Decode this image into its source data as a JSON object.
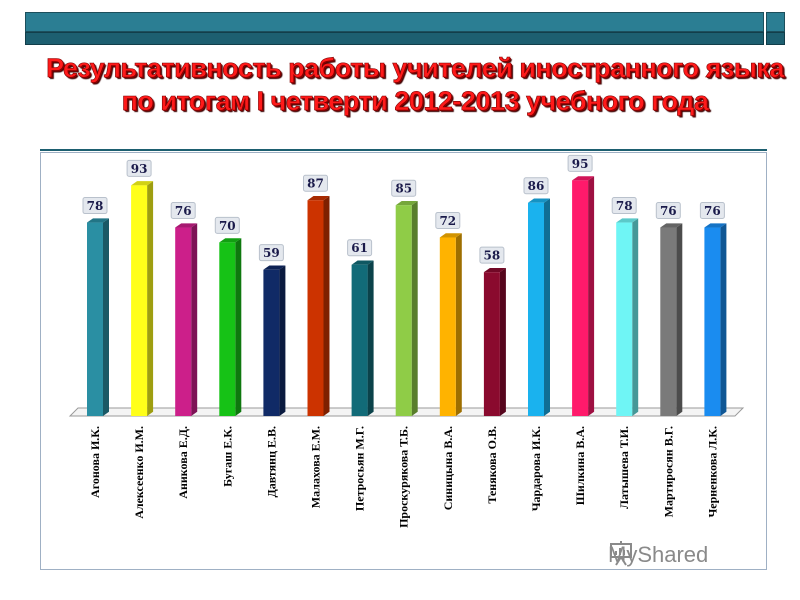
{
  "title": {
    "line1": "Результативность работы учителей иностранного языка",
    "line2": "по итогам I четверти 2012-2013 учебного года"
  },
  "watermark": {
    "text": "MyShared",
    "icon": "presentation-board-icon"
  },
  "chart_data": {
    "type": "bar",
    "title": "",
    "xlabel": "",
    "ylabel": "",
    "ylim": [
      0,
      100
    ],
    "grid": false,
    "legend": "none",
    "categories": [
      "Агонова И.К.",
      "Алексеенко И.М.",
      "Аникова Е.Д.",
      "Бугаш Е.К.",
      "Давтянц Е.В.",
      "Малахова Е.М.",
      "Петросьян М.Г.",
      "Проскурякова Т.Б.",
      "Синицына В.А.",
      "Тенякова О.В.",
      "Чардарова И.К.",
      "Шилкина В.А.",
      "Латышева Т.И.",
      "Мартиросян В.Г.",
      "Черненкова Л.К."
    ],
    "values": [
      78,
      93,
      76,
      70,
      59,
      87,
      61,
      85,
      72,
      58,
      86,
      95,
      78,
      76,
      76
    ],
    "colors": [
      "#2a8fa3",
      "#ffff1a",
      "#cc1f8a",
      "#16c216",
      "#102a66",
      "#cc3300",
      "#126b78",
      "#8fcc47",
      "#ffb300",
      "#8a0a2e",
      "#1ab2ee",
      "#ff1a6b",
      "#6ff5f5",
      "#7a7a7a",
      "#1a8cf0"
    ]
  }
}
